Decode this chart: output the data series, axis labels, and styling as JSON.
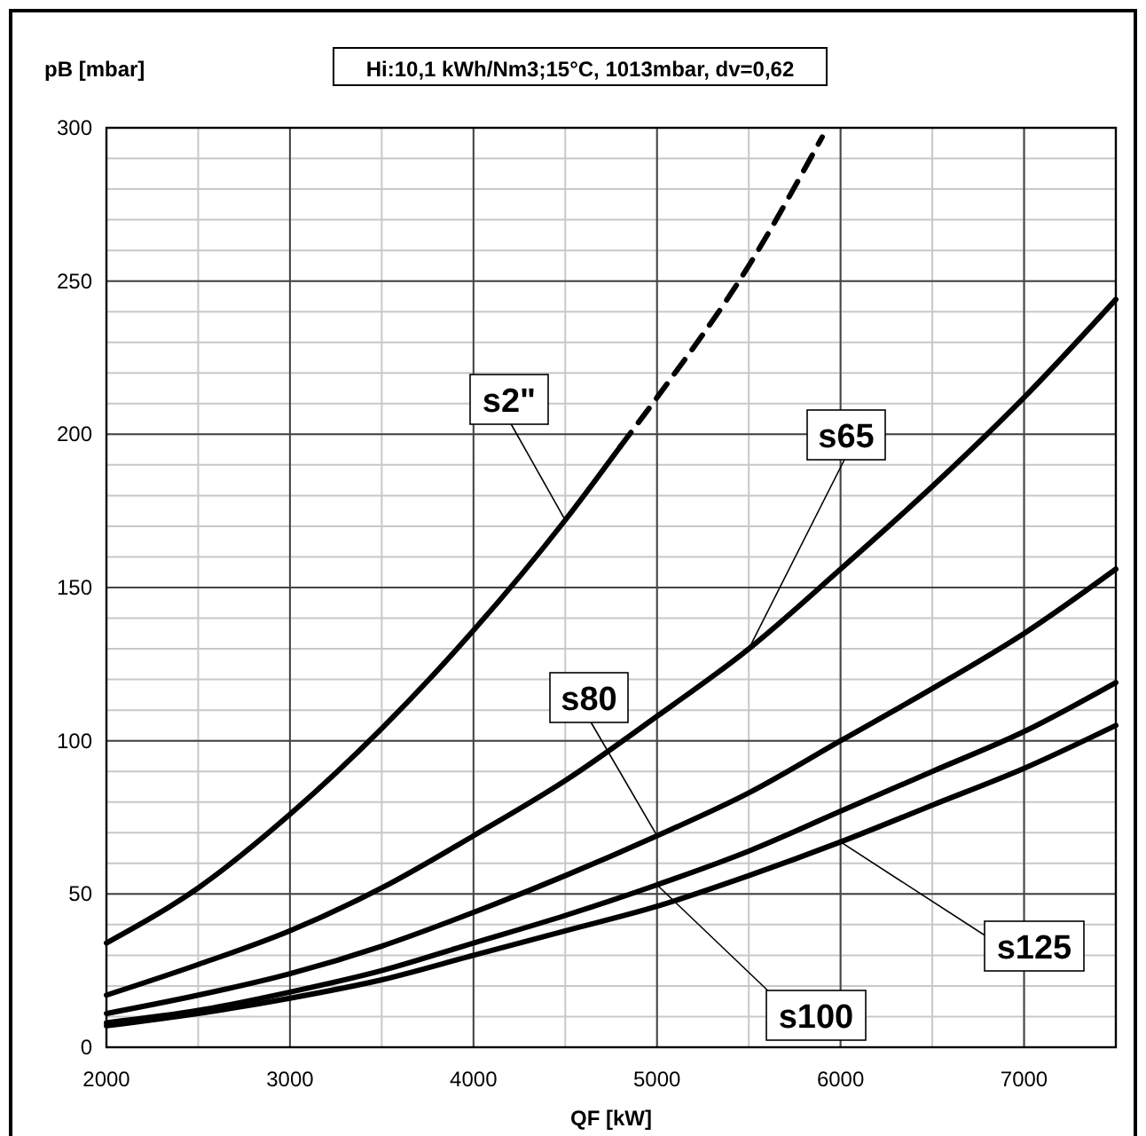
{
  "chart_data": {
    "type": "line",
    "title": "Hi:10,1 kWh/Nm3;15°C,  1013mbar, dv=0,62",
    "xlabel": "QF [kW]",
    "ylabel": "pB [mbar]",
    "xlim": [
      2000,
      7500
    ],
    "ylim": [
      0,
      300
    ],
    "xticks": [
      2000,
      3000,
      4000,
      5000,
      6000,
      7000
    ],
    "yticks": [
      0,
      50,
      100,
      150,
      200,
      250,
      300
    ],
    "grid": true,
    "marker": "none",
    "series": [
      {
        "name": "s2\"",
        "color": "#000000",
        "line_style": "solid",
        "x": [
          2000,
          2500,
          3000,
          3500,
          4000,
          4500,
          4800
        ],
        "values": [
          34,
          52,
          76,
          104,
          136,
          172,
          196
        ]
      },
      {
        "color": "#000000",
        "line_style": "dashed",
        "x": [
          4800,
          5000,
          5500,
          5900
        ],
        "values": [
          196,
          212,
          255,
          297
        ]
      },
      {
        "name": "s65",
        "color": "#000000",
        "line_style": "solid",
        "x": [
          2000,
          2500,
          3000,
          3500,
          4000,
          4500,
          5000,
          5500,
          6000,
          6500,
          7000,
          7500
        ],
        "values": [
          17,
          27,
          38,
          52,
          69,
          87,
          108,
          130,
          156,
          183,
          212,
          244
        ]
      },
      {
        "name": "s80",
        "color": "#000000",
        "line_style": "solid",
        "x": [
          2000,
          2500,
          3000,
          3500,
          4000,
          4500,
          5000,
          5500,
          6000,
          6500,
          7000,
          7500
        ],
        "values": [
          11,
          17,
          24,
          33,
          44,
          56,
          69,
          83,
          100,
          117,
          135,
          156
        ]
      },
      {
        "name": "s100",
        "color": "#000000",
        "line_style": "solid",
        "x": [
          2000,
          2500,
          3000,
          3500,
          4000,
          4500,
          5000,
          5500,
          6000,
          6500,
          7000,
          7500
        ],
        "values": [
          8,
          12,
          18,
          25,
          34,
          43,
          53,
          64,
          77,
          90,
          103,
          119
        ]
      },
      {
        "name": "s125",
        "color": "#000000",
        "line_style": "solid",
        "x": [
          2000,
          2500,
          3000,
          3500,
          4000,
          4500,
          5000,
          5500,
          6000,
          6500,
          7000,
          7500
        ],
        "values": [
          7,
          11,
          16,
          22,
          30,
          38,
          46,
          56,
          67,
          79,
          91,
          105
        ]
      }
    ]
  }
}
